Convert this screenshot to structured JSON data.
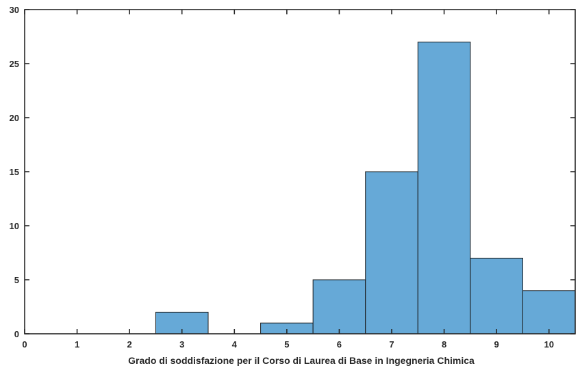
{
  "chart_data": {
    "type": "bar",
    "title": "",
    "xlabel": "Grado di soddisfazione per il Corso di Laurea di Base in Ingegneria Chimica",
    "ylabel": "",
    "xlim": [
      0,
      10.5
    ],
    "ylim": [
      0,
      30
    ],
    "x_ticks": [
      "0",
      "1",
      "2",
      "3",
      "4",
      "5",
      "6",
      "7",
      "8",
      "9",
      "10"
    ],
    "y_ticks": [
      "0",
      "5",
      "10",
      "15",
      "20",
      "25",
      "30"
    ],
    "bin_width": 1,
    "categories": [
      "3",
      "5",
      "6",
      "7",
      "8",
      "9",
      "10"
    ],
    "values": [
      2,
      1,
      5,
      15,
      27,
      7,
      4
    ],
    "bar_color": "#66A9D7",
    "edge_color": "#1a1a1a",
    "grid": false,
    "legend": "none"
  }
}
